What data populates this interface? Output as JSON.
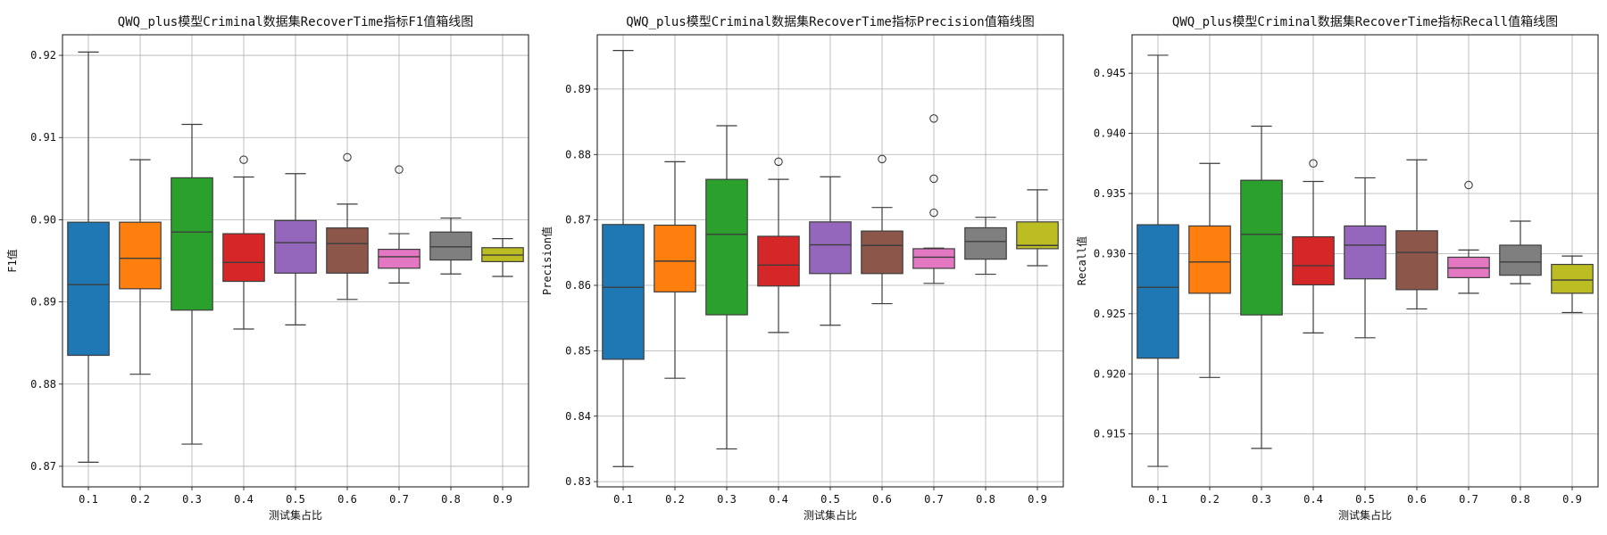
{
  "chart_data": [
    {
      "type": "boxplot",
      "title": "QWQ_plus模型Criminal数据集RecoverTime指标F1值箱线图",
      "xlabel": "测试集占比",
      "ylabel": "F1值",
      "ylim": [
        0.8675,
        0.9225
      ],
      "yticks": [
        "0.87",
        "0.88",
        "0.89",
        "0.90",
        "0.91",
        "0.92"
      ],
      "grid": true,
      "categories": [
        "0.1",
        "0.2",
        "0.3",
        "0.4",
        "0.5",
        "0.6",
        "0.7",
        "0.8",
        "0.9"
      ],
      "boxes": [
        {
          "whislo": 0.8705,
          "q1": 0.8835,
          "med": 0.8921,
          "q3": 0.8997,
          "whishi": 0.9204,
          "fliers": []
        },
        {
          "whislo": 0.8812,
          "q1": 0.8916,
          "med": 0.8953,
          "q3": 0.8997,
          "whishi": 0.9073,
          "fliers": []
        },
        {
          "whislo": 0.8727,
          "q1": 0.889,
          "med": 0.8985,
          "q3": 0.9051,
          "whishi": 0.9116,
          "fliers": []
        },
        {
          "whislo": 0.8867,
          "q1": 0.8925,
          "med": 0.8948,
          "q3": 0.8983,
          "whishi": 0.9052,
          "fliers": [
            0.9073
          ]
        },
        {
          "whislo": 0.8872,
          "q1": 0.8935,
          "med": 0.8972,
          "q3": 0.8999,
          "whishi": 0.9056,
          "fliers": []
        },
        {
          "whislo": 0.8903,
          "q1": 0.8935,
          "med": 0.8971,
          "q3": 0.899,
          "whishi": 0.9019,
          "fliers": [
            0.9076
          ]
        },
        {
          "whislo": 0.8923,
          "q1": 0.8941,
          "med": 0.8955,
          "q3": 0.8964,
          "whishi": 0.8983,
          "fliers": [
            0.9061
          ]
        },
        {
          "whislo": 0.8934,
          "q1": 0.8951,
          "med": 0.8967,
          "q3": 0.8985,
          "whishi": 0.9002,
          "fliers": []
        },
        {
          "whislo": 0.8931,
          "q1": 0.8949,
          "med": 0.8957,
          "q3": 0.8966,
          "whishi": 0.8977,
          "fliers": []
        }
      ]
    },
    {
      "type": "boxplot",
      "title": "QWQ_plus模型Criminal数据集RecoverTime指标Precision值箱线图",
      "xlabel": "测试集占比",
      "ylabel": "Precision值",
      "ylim": [
        0.8292,
        0.8983
      ],
      "yticks": [
        "0.83",
        "0.84",
        "0.85",
        "0.86",
        "0.87",
        "0.88",
        "0.89"
      ],
      "grid": true,
      "categories": [
        "0.1",
        "0.2",
        "0.3",
        "0.4",
        "0.5",
        "0.6",
        "0.7",
        "0.8",
        "0.9"
      ],
      "boxes": [
        {
          "whislo": 0.8323,
          "q1": 0.8487,
          "med": 0.8597,
          "q3": 0.8693,
          "whishi": 0.8959,
          "fliers": []
        },
        {
          "whislo": 0.8458,
          "q1": 0.859,
          "med": 0.8637,
          "q3": 0.8692,
          "whishi": 0.8789,
          "fliers": []
        },
        {
          "whislo": 0.835,
          "q1": 0.8555,
          "med": 0.8678,
          "q3": 0.8762,
          "whishi": 0.8844,
          "fliers": []
        },
        {
          "whislo": 0.8528,
          "q1": 0.8599,
          "med": 0.8631,
          "q3": 0.8675,
          "whishi": 0.8762,
          "fliers": [
            0.8789
          ]
        },
        {
          "whislo": 0.8539,
          "q1": 0.8618,
          "med": 0.8662,
          "q3": 0.8697,
          "whishi": 0.8766,
          "fliers": []
        },
        {
          "whislo": 0.8572,
          "q1": 0.8618,
          "med": 0.8661,
          "q3": 0.8683,
          "whishi": 0.8719,
          "fliers": [
            0.8793
          ]
        },
        {
          "whislo": 0.8603,
          "q1": 0.8626,
          "med": 0.8643,
          "q3": 0.8656,
          "whishi": 0.8657,
          "fliers": [
            0.8711,
            0.8763,
            0.8855
          ]
        },
        {
          "whislo": 0.8617,
          "q1": 0.864,
          "med": 0.8667,
          "q3": 0.8688,
          "whishi": 0.8704,
          "fliers": []
        },
        {
          "whislo": 0.863,
          "q1": 0.8656,
          "med": 0.8661,
          "q3": 0.8697,
          "whishi": 0.8746,
          "fliers": []
        }
      ]
    },
    {
      "type": "boxplot",
      "title": "QWQ_plus模型Criminal数据集RecoverTime指标Recall值箱线图",
      "xlabel": "测试集占比",
      "ylabel": "Recall值",
      "ylim": [
        0.9106,
        0.9482
      ],
      "yticks": [
        "0.915",
        "0.920",
        "0.925",
        "0.930",
        "0.935",
        "0.940",
        "0.945"
      ],
      "grid": true,
      "categories": [
        "0.1",
        "0.2",
        "0.3",
        "0.4",
        "0.5",
        "0.6",
        "0.7",
        "0.8",
        "0.9"
      ],
      "boxes": [
        {
          "whislo": 0.9123,
          "q1": 0.9213,
          "med": 0.9272,
          "q3": 0.9324,
          "whishi": 0.9465,
          "fliers": []
        },
        {
          "whislo": 0.9197,
          "q1": 0.9267,
          "med": 0.9293,
          "q3": 0.9323,
          "whishi": 0.9375,
          "fliers": []
        },
        {
          "whislo": 0.9138,
          "q1": 0.9249,
          "med": 0.9316,
          "q3": 0.9361,
          "whishi": 0.9406,
          "fliers": []
        },
        {
          "whislo": 0.9234,
          "q1": 0.9274,
          "med": 0.929,
          "q3": 0.9314,
          "whishi": 0.936,
          "fliers": [
            0.9375
          ]
        },
        {
          "whislo": 0.923,
          "q1": 0.9279,
          "med": 0.9307,
          "q3": 0.9323,
          "whishi": 0.9363,
          "fliers": []
        },
        {
          "whislo": 0.9254,
          "q1": 0.927,
          "med": 0.9301,
          "q3": 0.9319,
          "whishi": 0.9378,
          "fliers": []
        },
        {
          "whislo": 0.9267,
          "q1": 0.928,
          "med": 0.9288,
          "q3": 0.9297,
          "whishi": 0.9303,
          "fliers": [
            0.9357
          ]
        },
        {
          "whislo": 0.9275,
          "q1": 0.9282,
          "med": 0.9293,
          "q3": 0.9307,
          "whishi": 0.9327,
          "fliers": []
        },
        {
          "whislo": 0.9251,
          "q1": 0.9267,
          "med": 0.9278,
          "q3": 0.9291,
          "whishi": 0.9298,
          "fliers": []
        }
      ]
    }
  ],
  "palette": [
    "#1f77b4",
    "#ff7f0e",
    "#2ca02c",
    "#d62728",
    "#9467bd",
    "#8c564b",
    "#e377c2",
    "#7f7f7f",
    "#bcbd22"
  ]
}
